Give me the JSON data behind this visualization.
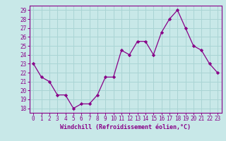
{
  "x": [
    0,
    1,
    2,
    3,
    4,
    5,
    6,
    7,
    8,
    9,
    10,
    11,
    12,
    13,
    14,
    15,
    16,
    17,
    18,
    19,
    20,
    21,
    22,
    23
  ],
  "y": [
    23,
    21.5,
    21,
    19.5,
    19.5,
    18,
    18.5,
    18.5,
    19.5,
    21.5,
    21.5,
    24.5,
    24,
    25.5,
    25.5,
    24,
    26.5,
    28,
    29,
    27,
    25,
    24.5,
    23,
    22
  ],
  "line_color": "#880088",
  "marker_color": "#880088",
  "bg_color": "#c8e8e8",
  "grid_color": "#aad4d4",
  "xlabel": "Windchill (Refroidissement éolien,°C)",
  "xlabel_color": "#880088",
  "tick_color": "#880088",
  "spine_color": "#880088",
  "ylim": [
    17.5,
    29.5
  ],
  "xlim": [
    -0.5,
    23.5
  ],
  "yticks": [
    18,
    19,
    20,
    21,
    22,
    23,
    24,
    25,
    26,
    27,
    28,
    29
  ],
  "xticks": [
    0,
    1,
    2,
    3,
    4,
    5,
    6,
    7,
    8,
    9,
    10,
    11,
    12,
    13,
    14,
    15,
    16,
    17,
    18,
    19,
    20,
    21,
    22,
    23
  ],
  "tick_fontsize": 5.5,
  "xlabel_fontsize": 6.0
}
